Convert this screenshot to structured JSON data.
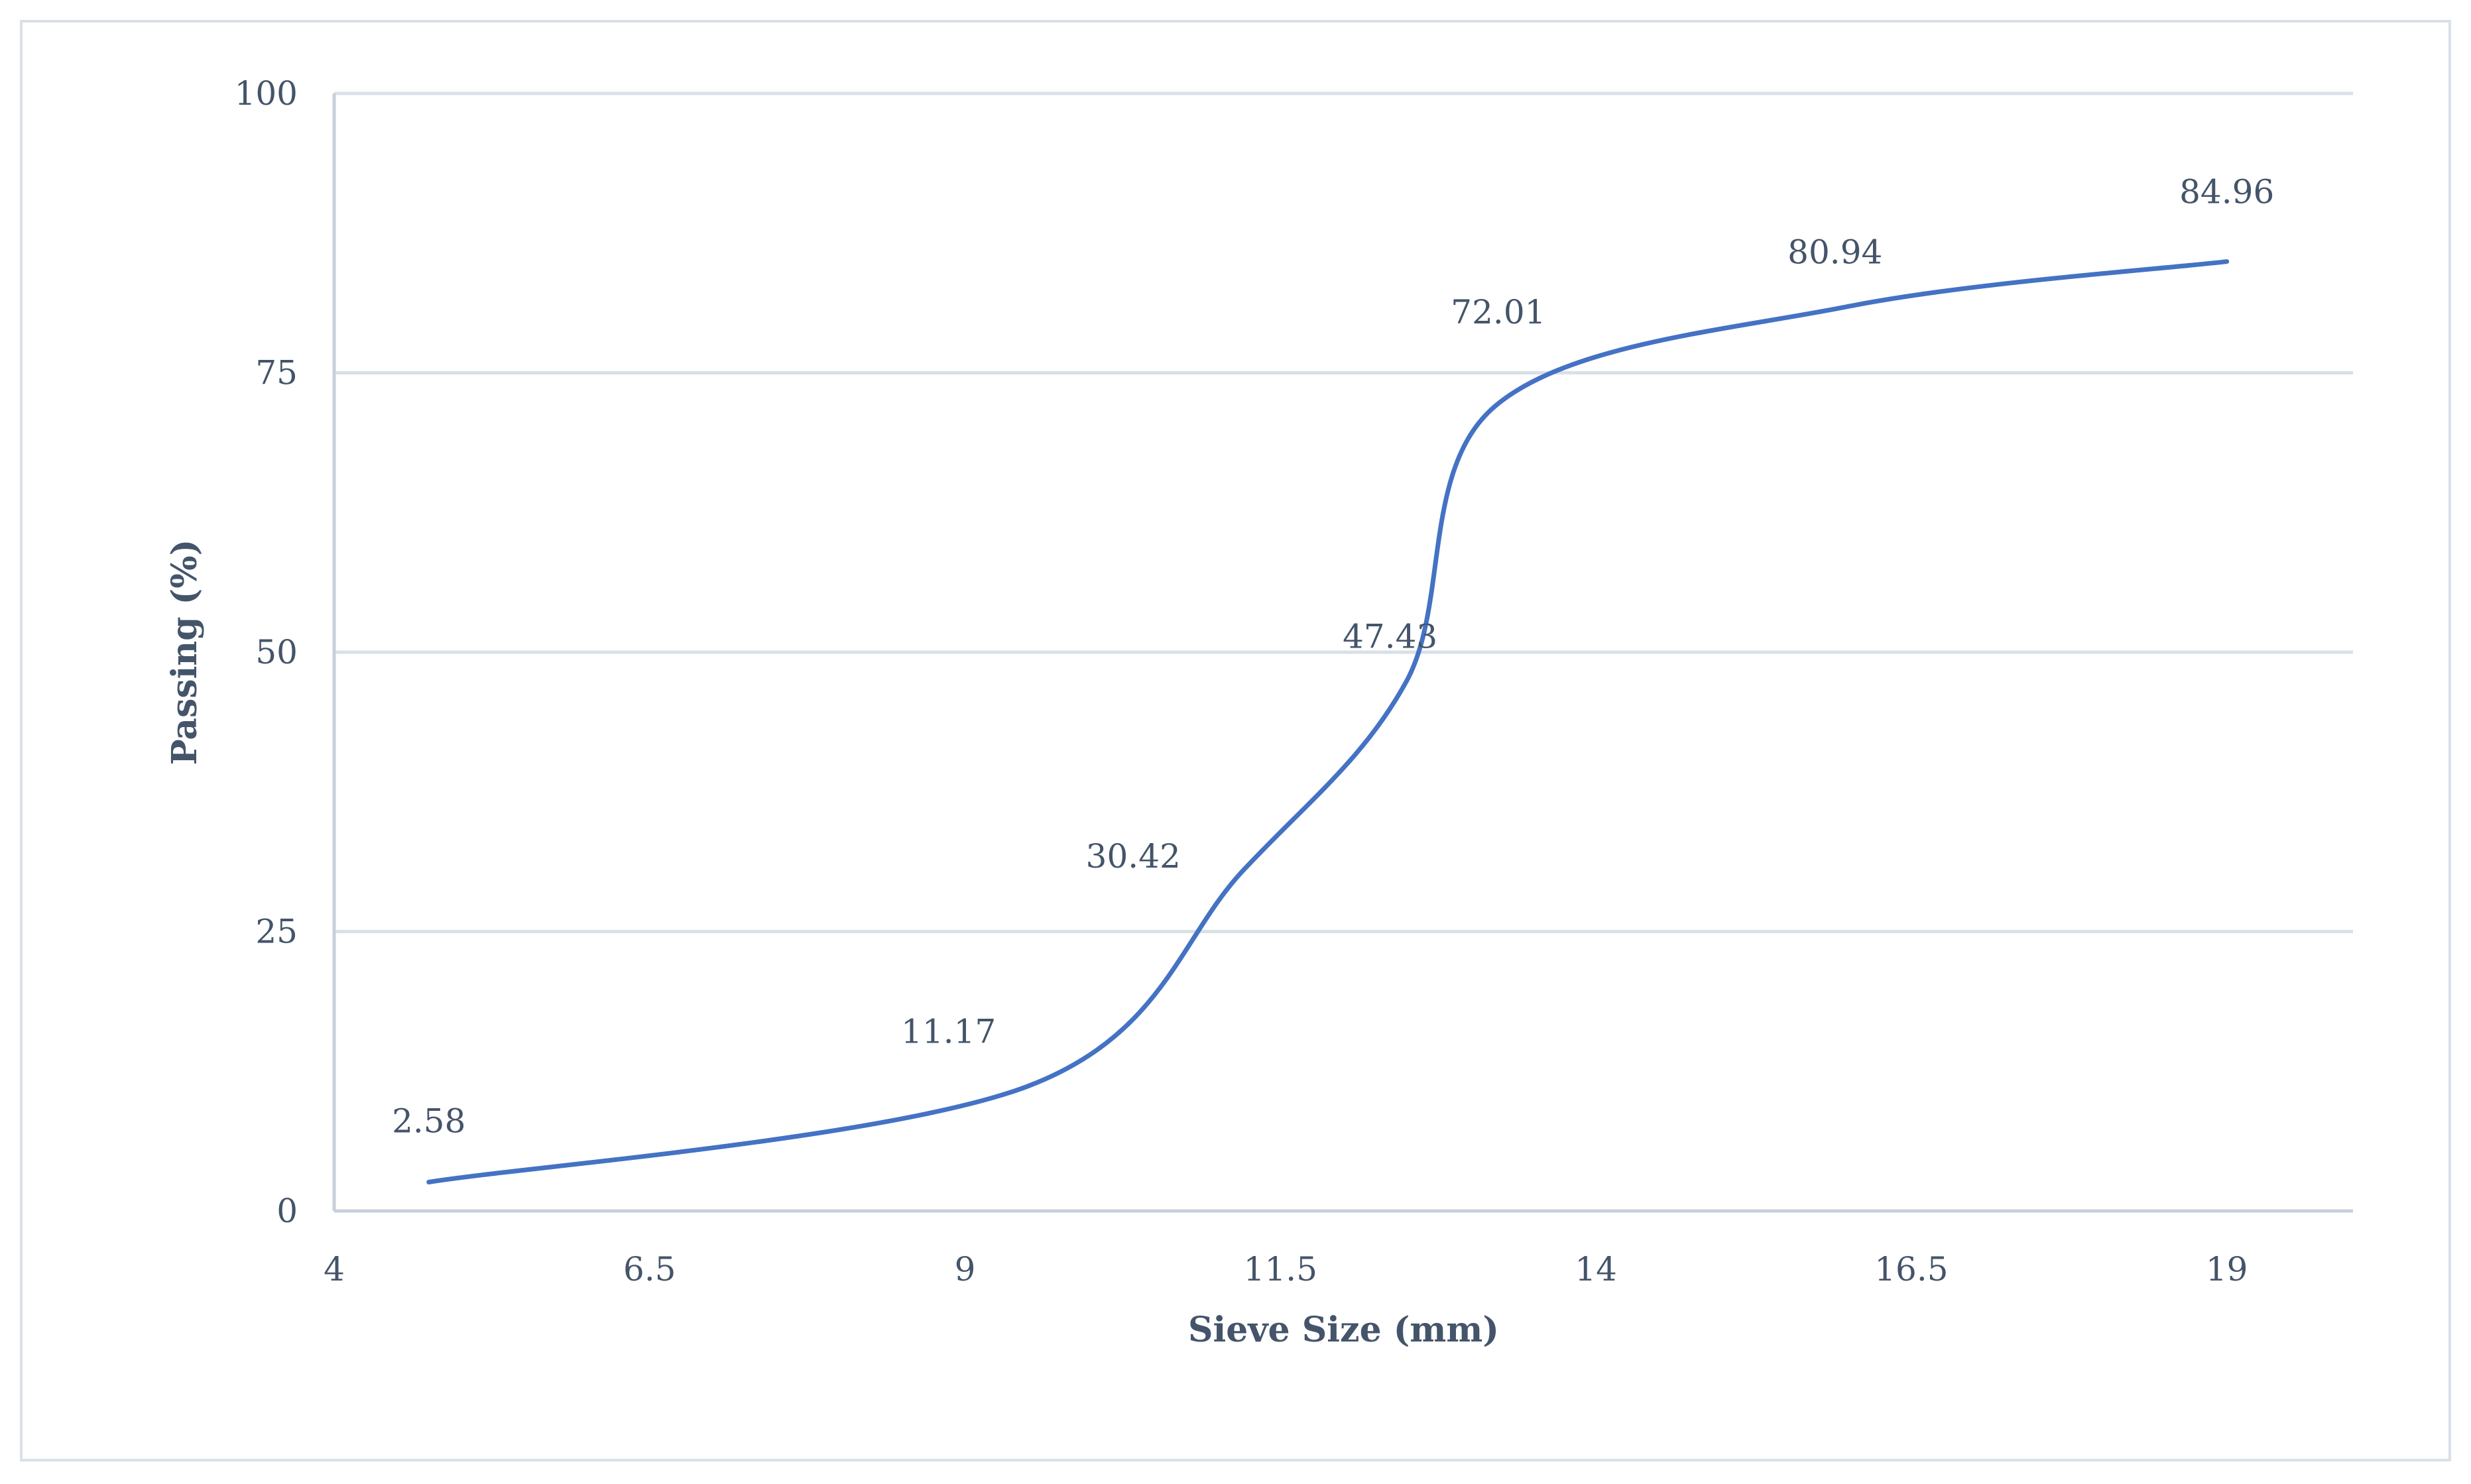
{
  "chart_data": {
    "type": "line",
    "title": "",
    "xlabel": "Sieve Size (mm)",
    "ylabel": "Passing (%)",
    "xlim": [
      4,
      20
    ],
    "ylim": [
      0,
      100
    ],
    "x_ticks": [
      4,
      6.5,
      9,
      11.5,
      14,
      16.5,
      19
    ],
    "x_tick_labels": [
      "4",
      "6.5",
      "9",
      "11.5",
      "14",
      "16.5",
      "19"
    ],
    "y_ticks": [
      0,
      25,
      50,
      75,
      100
    ],
    "y_tick_labels": [
      "0",
      "25",
      "50",
      "75",
      "100"
    ],
    "grid": "horizontal",
    "smooth": true,
    "series": [
      {
        "color": "#4472c4",
        "x": [
          4.75,
          9.5,
          11.2,
          12.5,
          13.2,
          16.0,
          19.0
        ],
        "y": [
          2.58,
          11.17,
          30.42,
          47.43,
          72.01,
          80.94,
          84.96
        ],
        "labels": [
          "2.58",
          "11.17",
          "30.42",
          "47.43",
          "72.01",
          "80.94",
          "84.96"
        ]
      }
    ]
  }
}
